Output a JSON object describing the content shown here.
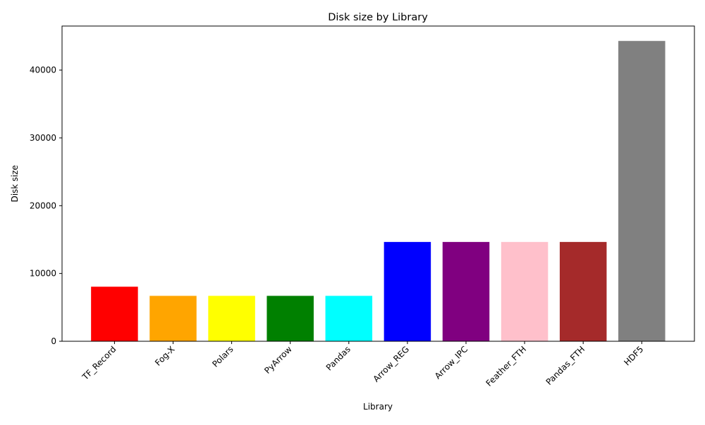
{
  "chart_data": {
    "type": "bar",
    "title": "Disk size by Library",
    "xlabel": "Library",
    "ylabel": "Disk size",
    "categories": [
      "TF_Record",
      "Fog-X",
      "Polars",
      "PyArrow",
      "Pandas",
      "Arrow_REG",
      "Arrow_IPC",
      "Feather_FTH",
      "Pandas_FTH",
      "HDF5"
    ],
    "values": [
      8050,
      6700,
      6700,
      6700,
      6700,
      14650,
      14650,
      14650,
      14650,
      44300
    ],
    "colors": [
      "#ff0000",
      "#ffa500",
      "#ffff00",
      "#008000",
      "#00ffff",
      "#0000ff",
      "#800080",
      "#ffc0cb",
      "#a52a2a",
      "#808080"
    ],
    "ylim": [
      0,
      46500
    ],
    "yticks": [
      0,
      10000,
      20000,
      30000,
      40000
    ],
    "grid": false,
    "x_tick_rotation_deg": 45
  }
}
